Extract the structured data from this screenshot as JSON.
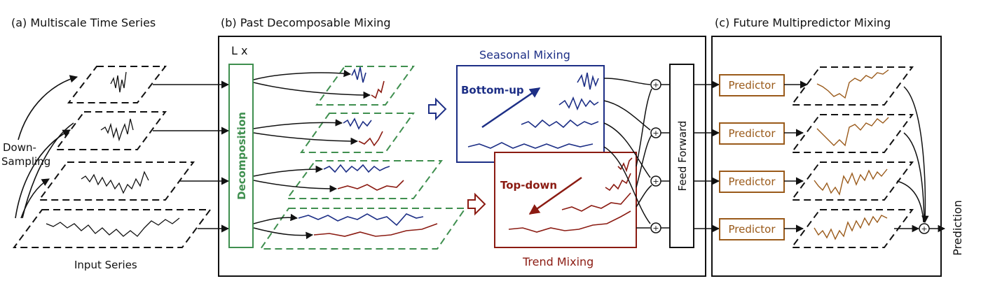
{
  "sections": {
    "a_title": "(a) Multiscale Time Series",
    "b_title": "(b) Past Decomposable Mixing",
    "c_title": "(c) Future Multipredictor Mixing"
  },
  "labels": {
    "down": "Down-",
    "sampling": "Sampling",
    "input_series": "Input Series",
    "lx": "L x",
    "decomposition": "Decomposition",
    "seasonal_mixing": "Seasonal Mixing",
    "bottom_up": "Bottom-up",
    "trend_mixing": "Trend Mixing",
    "top_down": "Top-down",
    "feed_forward": "Feed Forward",
    "predictor": "Predictor",
    "prediction": "Prediction",
    "plus": "+"
  },
  "colors": {
    "green": "#3f8f4f",
    "blue": "#1d2f86",
    "red": "#8b1b12",
    "orange": "#9a5a1a",
    "black": "#111111"
  }
}
